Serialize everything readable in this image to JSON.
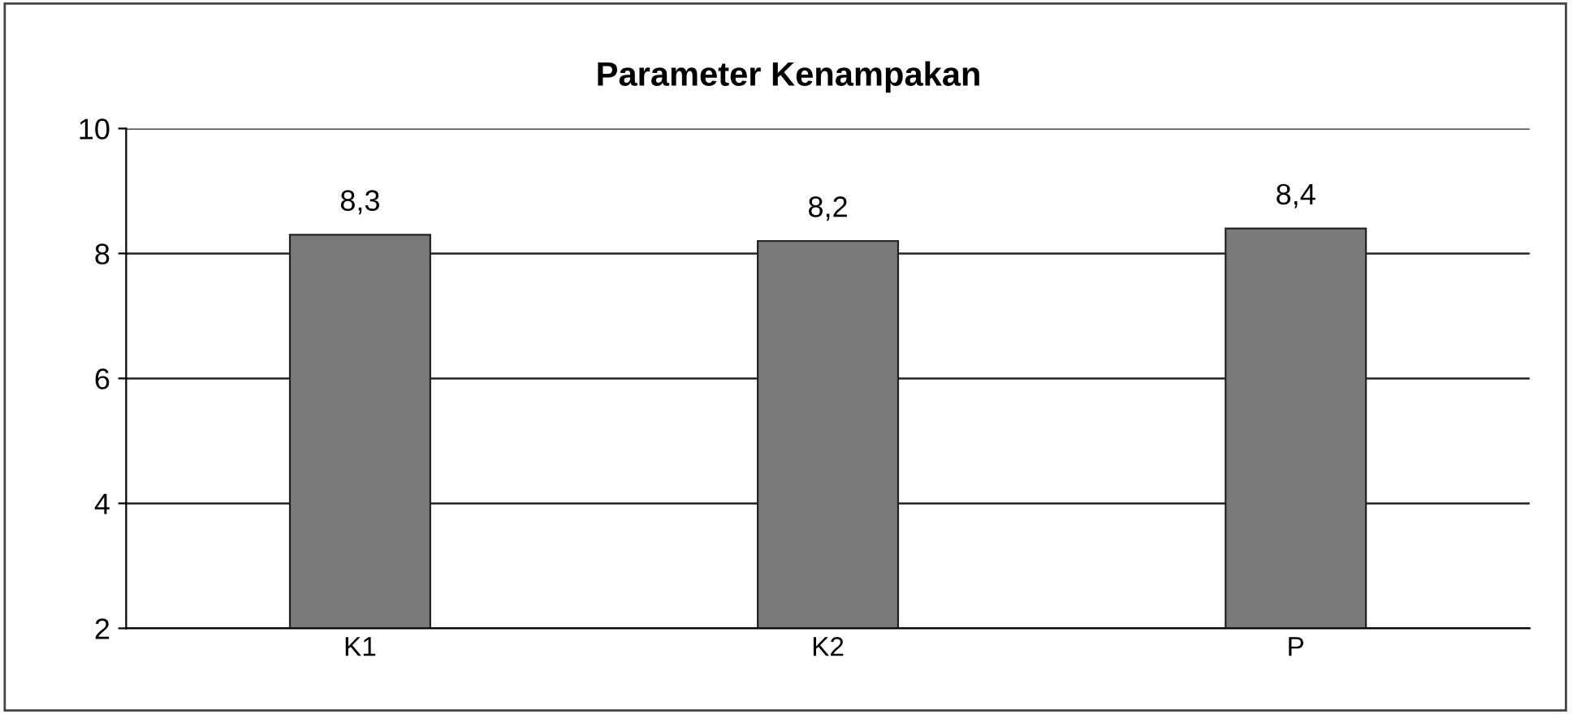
{
  "chart_data": {
    "type": "bar",
    "title": "Parameter Kenampakan",
    "categories": [
      "K1",
      "K2",
      "P"
    ],
    "values": [
      8.3,
      8.2,
      8.4
    ],
    "value_labels": [
      "8,3",
      "8,2",
      "8,4"
    ],
    "color": "#7a7a7a",
    "ylim": [
      2,
      10
    ],
    "yticks": [
      2,
      4,
      6,
      8,
      10
    ],
    "grid": "y",
    "legend": false
  }
}
